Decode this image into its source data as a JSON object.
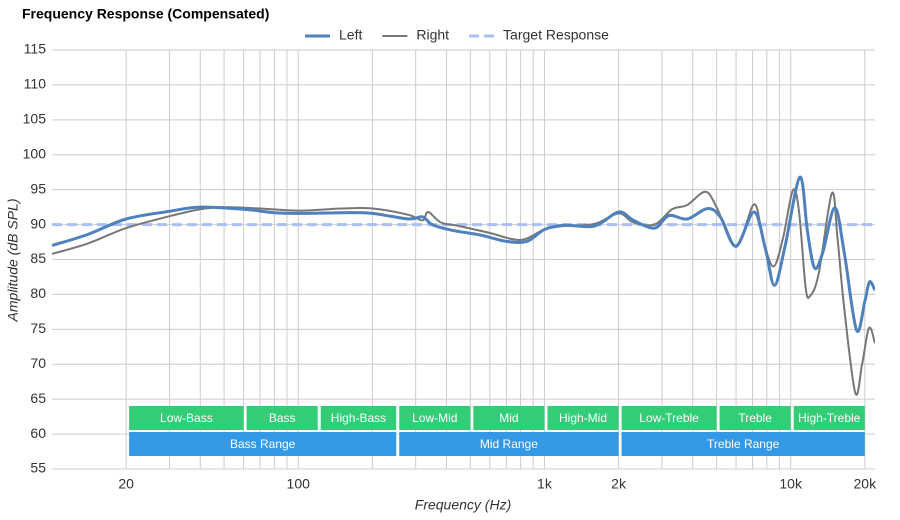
{
  "chart_data": {
    "type": "line",
    "title": "Frequency Response (Compensated)",
    "x_label": "Frequency (Hz)",
    "y_label": "Amplitude (dB SPL)",
    "xscale": "log",
    "xlim": [
      10,
      22000
    ],
    "ylim": [
      55,
      115
    ],
    "yticks": [
      55,
      60,
      65,
      70,
      75,
      80,
      85,
      90,
      95,
      100,
      105,
      110,
      115
    ],
    "xticks": [
      20,
      100,
      {
        "value": 1000,
        "label": "1k"
      },
      {
        "value": 2000,
        "label": "2k"
      },
      {
        "value": 10000,
        "label": "10k"
      },
      {
        "value": 20000,
        "label": "20k"
      }
    ],
    "xgrid": [
      30,
      40,
      50,
      60,
      70,
      80,
      90,
      200,
      300,
      400,
      500,
      600,
      700,
      800,
      900,
      3000,
      4000,
      5000,
      6000,
      7000,
      8000,
      9000
    ],
    "grid": true,
    "series": [
      {
        "name": "Left",
        "color": "#4f81bd",
        "width": 3,
        "dashed": false,
        "x": [
          10,
          14,
          20,
          30,
          40,
          60,
          80,
          100,
          150,
          200,
          280,
          320,
          350,
          420,
          550,
          700,
          850,
          1000,
          1200,
          1600,
          2000,
          2300,
          2800,
          3200,
          3800,
          4600,
          5200,
          6000,
          7100,
          7900,
          8600,
          9500,
          10900,
          11700,
          12500,
          13500,
          15100,
          16500,
          18500,
          20000,
          20900,
          22000
        ],
        "values": [
          87.0,
          88.6,
          90.8,
          91.9,
          92.5,
          92.2,
          91.7,
          91.6,
          91.7,
          91.6,
          90.8,
          91.1,
          90.0,
          89.2,
          88.5,
          87.6,
          87.6,
          89.3,
          89.9,
          89.8,
          91.8,
          90.6,
          89.5,
          91.3,
          90.8,
          92.3,
          91.0,
          86.9,
          91.8,
          86.5,
          81.3,
          87.0,
          96.8,
          89.0,
          83.8,
          86.0,
          92.4,
          86.0,
          74.9,
          79.0,
          81.8,
          80.6
        ]
      },
      {
        "name": "Right",
        "color": "#777777",
        "width": 2,
        "dashed": false,
        "x": [
          10,
          14,
          20,
          30,
          40,
          50,
          70,
          100,
          150,
          200,
          280,
          320,
          337,
          380,
          450,
          600,
          800,
          1000,
          1200,
          1600,
          2000,
          2300,
          2800,
          3300,
          3800,
          4500,
          5000,
          6000,
          7100,
          7700,
          8500,
          9300,
          10200,
          10800,
          11500,
          12000,
          13000,
          14700,
          15500,
          16500,
          18300,
          19500,
          20800,
          22000
        ],
        "values": [
          85.8,
          87.3,
          89.5,
          91.2,
          92.2,
          92.5,
          92.3,
          92.0,
          92.3,
          92.3,
          91.4,
          90.6,
          91.8,
          90.3,
          89.8,
          88.8,
          87.8,
          89.3,
          89.8,
          90.1,
          91.6,
          90.3,
          90.0,
          92.2,
          92.8,
          94.7,
          92.5,
          86.8,
          92.9,
          88.0,
          84.0,
          88.0,
          94.9,
          92.0,
          81.0,
          79.8,
          83.0,
          94.5,
          88.0,
          78.0,
          65.9,
          70.0,
          75.2,
          73.0
        ]
      },
      {
        "name": "Target Response",
        "color": "#aabff5",
        "width": 3,
        "dashed": true,
        "x": [
          10,
          22000
        ],
        "values": [
          90,
          90
        ]
      }
    ],
    "bands": [
      {
        "label": "Low-Bass",
        "from": 20,
        "to": 60
      },
      {
        "label": "Bass",
        "from": 60,
        "to": 120
      },
      {
        "label": "High-Bass",
        "from": 120,
        "to": 250
      },
      {
        "label": "Low-Mid",
        "from": 250,
        "to": 500
      },
      {
        "label": "Mid",
        "from": 500,
        "to": 1000
      },
      {
        "label": "High-Mid",
        "from": 1000,
        "to": 2000
      },
      {
        "label": "Low-Treble",
        "from": 2000,
        "to": 5000
      },
      {
        "label": "Treble",
        "from": 5000,
        "to": 10000
      },
      {
        "label": "High-Treble",
        "from": 10000,
        "to": 20000
      }
    ],
    "band_color": "#33cc77",
    "ranges": [
      {
        "label": "Bass Range",
        "from": 20,
        "to": 250
      },
      {
        "label": "Mid Range",
        "from": 250,
        "to": 2000
      },
      {
        "label": "Treble Range",
        "from": 2000,
        "to": 20000
      }
    ],
    "range_color": "#3399e6"
  }
}
